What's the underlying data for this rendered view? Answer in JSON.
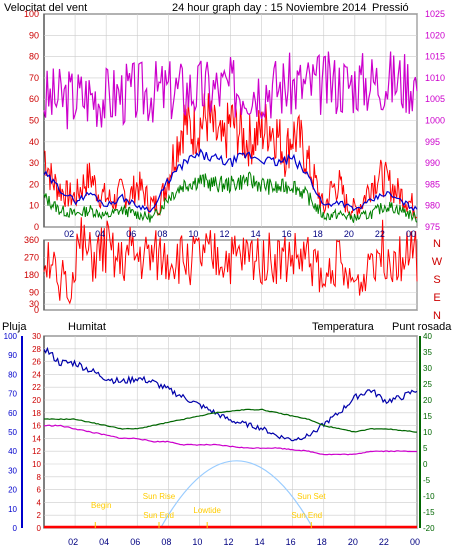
{
  "header": {
    "left_label": "Velocitat del vent",
    "title": "24 hour graph day : 15 Noviembre 2014",
    "right_label": "Pressió"
  },
  "bottom_header": {
    "rain": "Pluja",
    "humidity": "Humitat",
    "temperature": "Temperatura",
    "dewpoint": "Punt rosada"
  },
  "colors": {
    "wind": "#ff0000",
    "wind_avg": "#0000cc",
    "wind_min": "#008000",
    "pressure": "#cc00cc",
    "humidity": "#0000aa",
    "temperature": "#006600",
    "dewpoint": "#cc00cc",
    "rain": "#ff0000",
    "sun": "#99ccff",
    "text_red": "#cc0000",
    "text_magenta": "#cc00cc",
    "text_blue": "#0000cc",
    "text_green": "#006600",
    "astro_text": "#ffcc00"
  },
  "chart_data": [
    {
      "type": "line",
      "name": "wind-pressure",
      "x_ticks": [
        "02",
        "04",
        "06",
        "08",
        "10",
        "12",
        "14",
        "16",
        "18",
        "20",
        "22",
        "00"
      ],
      "y_left_ticks": [
        0,
        10,
        20,
        30,
        40,
        50,
        60,
        70,
        80,
        90,
        100
      ],
      "y_right_ticks": [
        975,
        980,
        985,
        990,
        995,
        1000,
        1005,
        1010,
        1015,
        1020,
        1025
      ],
      "ylim_left": [
        0,
        100
      ],
      "ylim_right": [
        975,
        1025
      ],
      "series": [
        {
          "key": "gust",
          "hours": [
            0,
            0.5,
            1,
            1.5,
            2,
            2.5,
            3,
            3.5,
            4,
            4.5,
            5,
            5.5,
            6,
            6.5,
            7,
            7.5,
            8,
            8.5,
            9,
            9.5,
            10,
            10.5,
            11,
            11.5,
            12,
            12.5,
            13,
            13.5,
            14,
            14.5,
            15,
            15.5,
            16,
            16.5,
            17,
            17.5,
            18,
            18.5,
            19,
            19.5,
            20,
            20.5,
            21,
            21.5,
            22,
            22.5,
            23,
            23.5,
            24
          ],
          "values": [
            36,
            22,
            18,
            15,
            14,
            20,
            24,
            16,
            14,
            12,
            17,
            14,
            20,
            15,
            10,
            12,
            24,
            38,
            50,
            45,
            48,
            52,
            44,
            38,
            50,
            46,
            40,
            42,
            45,
            48,
            44,
            34,
            44,
            40,
            30,
            20,
            8,
            18,
            20,
            10,
            8,
            12,
            20,
            24,
            22,
            18,
            15,
            12,
            8
          ]
        },
        {
          "key": "avg",
          "hours": [
            0,
            1,
            2,
            3,
            4,
            5,
            6,
            7,
            8,
            9,
            10,
            11,
            12,
            13,
            14,
            15,
            16,
            17,
            18,
            19,
            20,
            21,
            22,
            23,
            24
          ],
          "values": [
            25,
            18,
            12,
            16,
            10,
            14,
            10,
            8,
            22,
            30,
            34,
            32,
            30,
            34,
            32,
            30,
            32,
            24,
            10,
            12,
            8,
            12,
            16,
            12,
            8
          ]
        },
        {
          "key": "min",
          "hours": [
            0,
            1,
            2,
            3,
            4,
            5,
            6,
            7,
            8,
            9,
            10,
            11,
            12,
            13,
            14,
            15,
            16,
            17,
            18,
            19,
            20,
            21,
            22,
            23,
            24
          ],
          "values": [
            14,
            8,
            6,
            8,
            5,
            8,
            6,
            4,
            14,
            20,
            22,
            20,
            20,
            22,
            20,
            18,
            20,
            14,
            5,
            6,
            4,
            6,
            10,
            8,
            4
          ]
        },
        {
          "key": "pressure",
          "hours": [
            0,
            1,
            2,
            3,
            4,
            5,
            6,
            7,
            8,
            9,
            10,
            11,
            12,
            13,
            14,
            15,
            16,
            17,
            18,
            19,
            20,
            21,
            22,
            23,
            24
          ],
          "values": [
            1005,
            1005.2,
            1005.5,
            1006,
            1005.5,
            1006.4,
            1006.6,
            1006.8,
            1007,
            1007.2,
            1007.3,
            1007.4,
            1007.6,
            1007.8,
            1008,
            1008,
            1008.3,
            1008.4,
            1008.6,
            1008.8,
            1009,
            1009.2,
            1009.5,
            1009.4,
            1009
          ]
        }
      ]
    },
    {
      "type": "line",
      "name": "wind-direction",
      "y_ticks": [
        0,
        30,
        90,
        180,
        270,
        360
      ],
      "dir_labels": [
        "N",
        "W",
        "S",
        "E",
        "N"
      ],
      "hours": [
        0,
        0.5,
        1,
        1.3,
        1.6,
        2,
        2.5,
        3,
        3.5,
        4,
        4.5,
        5,
        5.5,
        6,
        7,
        8,
        9,
        10,
        11,
        12,
        13,
        14,
        15,
        16,
        17,
        17.5,
        18,
        18.5,
        19,
        19.5,
        20,
        20.5,
        21,
        22,
        22.5,
        23,
        24
      ],
      "values": [
        270,
        300,
        40,
        240,
        10,
        300,
        320,
        260,
        280,
        320,
        250,
        240,
        290,
        270,
        270,
        270,
        260,
        270,
        270,
        260,
        270,
        280,
        260,
        270,
        260,
        250,
        100,
        260,
        250,
        140,
        150,
        130,
        300,
        310,
        280,
        300,
        270
      ]
    },
    {
      "type": "line",
      "name": "humidity-temperature",
      "x_ticks": [
        "02",
        "04",
        "06",
        "08",
        "10",
        "12",
        "14",
        "16",
        "18",
        "20",
        "22",
        "00"
      ],
      "y_rain_ticks": [
        0,
        2,
        4,
        6,
        8,
        10,
        12,
        14,
        16,
        18,
        20,
        22,
        24,
        26,
        28,
        30
      ],
      "y_hum_ticks": [
        0,
        10,
        20,
        30,
        40,
        50,
        60,
        70,
        80,
        90,
        100
      ],
      "y_temp_ticks": [
        -20,
        -15,
        -10,
        -5,
        0,
        5,
        10,
        15,
        20,
        25,
        30,
        35,
        40
      ],
      "series": [
        {
          "key": "humidity",
          "hours": [
            0,
            1,
            2,
            3,
            4,
            5,
            6,
            7,
            8,
            9,
            10,
            11,
            12,
            13,
            14,
            15,
            16,
            17,
            18,
            19,
            20,
            21,
            22,
            23,
            24
          ],
          "values": [
            94,
            86,
            86,
            82,
            78,
            76,
            78,
            76,
            72,
            68,
            64,
            60,
            56,
            54,
            52,
            48,
            46,
            48,
            54,
            60,
            68,
            72,
            66,
            68,
            72
          ]
        },
        {
          "key": "temperature",
          "hours": [
            0,
            1,
            2,
            3,
            4,
            5,
            6,
            7,
            8,
            9,
            10,
            11,
            12,
            13,
            14,
            15,
            16,
            17,
            18,
            19,
            20,
            21,
            22,
            23,
            24
          ],
          "values": [
            14,
            14,
            14,
            13,
            12,
            11,
            11,
            12,
            13,
            14,
            15,
            16,
            16.5,
            17,
            17,
            16,
            15,
            14,
            12,
            11,
            10,
            11,
            11,
            10.5,
            10
          ]
        },
        {
          "key": "dewpoint",
          "hours": [
            0,
            1,
            2,
            3,
            4,
            5,
            6,
            7,
            8,
            9,
            10,
            11,
            12,
            13,
            14,
            15,
            16,
            17,
            18,
            19,
            20,
            21,
            22,
            23,
            24
          ],
          "values": [
            12,
            12,
            11,
            10,
            9,
            8,
            8,
            7,
            7,
            6,
            6,
            6,
            5.5,
            5,
            5,
            5,
            4.5,
            4,
            3,
            3,
            3,
            4,
            4,
            4,
            4
          ]
        },
        {
          "key": "rain",
          "hours": [
            0,
            24
          ],
          "values": [
            0,
            0
          ]
        }
      ],
      "astro": {
        "twilight_begin": {
          "label": "Begin",
          "hour": 3.3
        },
        "sunrise": {
          "label": "Sun Rise",
          "hour": 7.4
        },
        "sunrise_end": {
          "label": "Sun End",
          "hour": 7.5
        },
        "lowtide": {
          "label": "Lowtide",
          "hour": 10.5
        },
        "sunset": {
          "label": "Sun Set",
          "hour": 17.2
        },
        "sunset_end": {
          "label": "Sun End",
          "hour": 17.1
        }
      },
      "sun_arc": {
        "start_hour": 7.5,
        "end_hour": 17.3,
        "peak_hour": 12.4,
        "peak_rain_units": 10.5
      }
    }
  ]
}
